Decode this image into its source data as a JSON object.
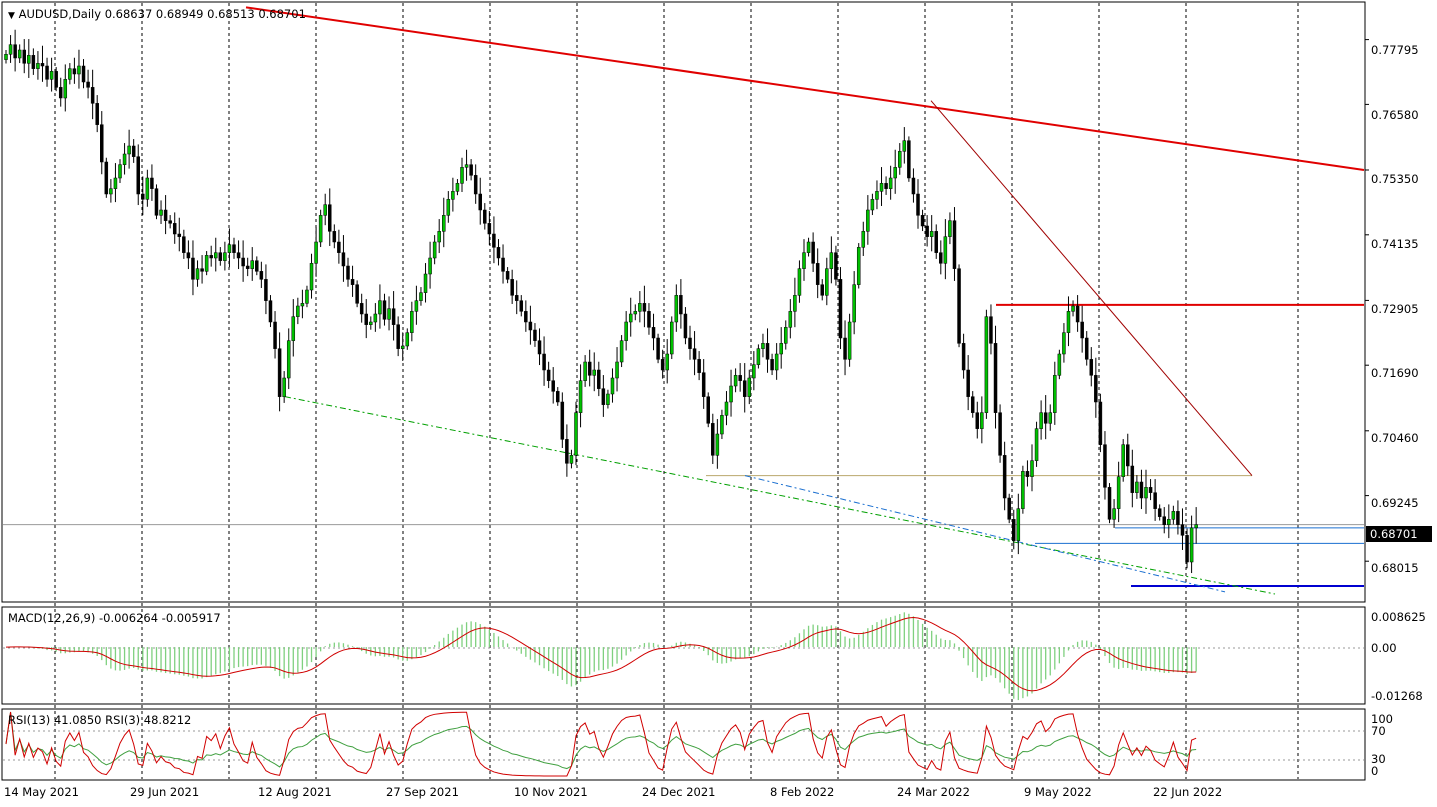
{
  "header": {
    "symbol_line": "AUDUSD,Daily  0.68637 0.68949 0.68513 0.68701",
    "macd_label": "MACD(12,26,9) -0.006264 -0.005917",
    "rsi_label": "RSI(13) 41.0850  RSI(3) 48.8212"
  },
  "current_price": "0.68701",
  "price_axis": [
    "0.77795",
    "0.76580",
    "0.75350",
    "0.74135",
    "0.72905",
    "0.71690",
    "0.70460",
    "0.69245",
    "0.68015"
  ],
  "macd_axis": [
    "0.008625",
    "0.00",
    "-0.01268"
  ],
  "rsi_axis": [
    "100",
    "70",
    "30",
    "0"
  ],
  "date_axis": [
    "14 May 2021",
    "29 Jun 2021",
    "12 Aug 2021",
    "27 Sep 2021",
    "10 Nov 2021",
    "24 Dec 2021",
    "8 Feb 2022",
    "24 Mar 2022",
    "9 May 2022",
    "22 Jun 2022"
  ],
  "colors": {
    "up": "#00c000",
    "down": "#000000",
    "trend_red": "#e00000",
    "support_green": "#00a000",
    "support_blue": "#1a6fd0",
    "fib": "#b9a76b",
    "macd_hist": "#7fd07f",
    "signal": "#d00000",
    "rsi13": "#40a040",
    "rsi3": "#d00000"
  },
  "chart_data": {
    "type": "candlestick",
    "symbol": "AUDUSD",
    "timeframe": "Daily",
    "last_bar": {
      "open": 0.68637,
      "high": 0.68949,
      "low": 0.68513,
      "close": 0.68701
    },
    "ylim": [
      0.6725,
      0.785
    ],
    "yticks": [
      0.77795,
      0.7658,
      0.7535,
      0.74135,
      0.72905,
      0.7169,
      0.7046,
      0.69245,
      0.68015
    ],
    "xticks": [
      "14 May 2021",
      "29 Jun 2021",
      "12 Aug 2021",
      "27 Sep 2021",
      "10 Nov 2021",
      "24 Dec 2021",
      "8 Feb 2022",
      "24 Mar 2022",
      "9 May 2022",
      "22 Jun 2022"
    ],
    "closes": [
      0.7752,
      0.777,
      0.7745,
      0.776,
      0.7735,
      0.775,
      0.7725,
      0.7735,
      0.773,
      0.7705,
      0.772,
      0.769,
      0.767,
      0.7705,
      0.7725,
      0.7715,
      0.773,
      0.77,
      0.769,
      0.766,
      0.762,
      0.755,
      0.749,
      0.75,
      0.752,
      0.7545,
      0.7565,
      0.758,
      0.756,
      0.749,
      0.748,
      0.752,
      0.75,
      0.745,
      0.746,
      0.744,
      0.7435,
      0.7415,
      0.741,
      0.738,
      0.737,
      0.733,
      0.735,
      0.7345,
      0.7375,
      0.737,
      0.738,
      0.7365,
      0.738,
      0.7395,
      0.738,
      0.737,
      0.7355,
      0.735,
      0.7365,
      0.7345,
      0.733,
      0.729,
      0.725,
      0.72,
      0.711,
      0.7145,
      0.7215,
      0.726,
      0.728,
      0.7285,
      0.731,
      0.736,
      0.74,
      0.745,
      0.747,
      0.742,
      0.74,
      0.738,
      0.7355,
      0.733,
      0.732,
      0.7285,
      0.7265,
      0.7245,
      0.725,
      0.7265,
      0.729,
      0.7255,
      0.7275,
      0.7245,
      0.72,
      0.7205,
      0.723,
      0.727,
      0.729,
      0.7305,
      0.734,
      0.737,
      0.74,
      0.742,
      0.745,
      0.748,
      0.7495,
      0.751,
      0.754,
      0.7545,
      0.7525,
      0.749,
      0.746,
      0.7435,
      0.7415,
      0.739,
      0.737,
      0.7345,
      0.733,
      0.73,
      0.729,
      0.727,
      0.725,
      0.7235,
      0.7215,
      0.719,
      0.716,
      0.714,
      0.712,
      0.71,
      0.703,
      0.6985,
      0.7,
      0.708,
      0.714,
      0.7175,
      0.715,
      0.716,
      0.7125,
      0.7095,
      0.7115,
      0.7145,
      0.7175,
      0.7215,
      0.725,
      0.7265,
      0.727,
      0.7285,
      0.727,
      0.724,
      0.722,
      0.718,
      0.716,
      0.719,
      0.725,
      0.73,
      0.7265,
      0.722,
      0.72,
      0.718,
      0.7155,
      0.711,
      0.706,
      0.7,
      0.704,
      0.7075,
      0.71,
      0.713,
      0.715,
      0.714,
      0.711,
      0.7145,
      0.717,
      0.72,
      0.721,
      0.718,
      0.716,
      0.719,
      0.721,
      0.724,
      0.727,
      0.73,
      0.735,
      0.738,
      0.74,
      0.736,
      0.732,
      0.73,
      0.735,
      0.738,
      0.733,
      0.722,
      0.718,
      0.725,
      0.732,
      0.739,
      0.742,
      0.746,
      0.748,
      0.7495,
      0.751,
      0.75,
      0.752,
      0.754,
      0.757,
      0.759,
      0.752,
      0.749,
      0.745,
      0.743,
      0.741,
      0.742,
      0.738,
      0.736,
      0.741,
      0.744,
      0.735,
      0.721,
      0.716,
      0.711,
      0.708,
      0.705,
      0.708,
      0.726,
      0.721,
      0.708,
      0.7,
      0.692,
      0.688,
      0.684,
      0.69,
      0.697,
      0.696,
      0.699,
      0.705,
      0.708,
      0.706,
      0.708,
      0.715,
      0.719,
      0.723,
      0.727,
      0.728,
      0.725,
      0.722,
      0.718,
      0.715,
      0.71,
      0.702,
      0.694,
      0.688,
      0.69,
      0.696,
      0.702,
      0.698,
      0.693,
      0.695,
      0.692,
      0.694,
      0.693,
      0.69,
      0.6885,
      0.687,
      0.688,
      0.6895,
      0.687,
      0.685,
      0.68,
      0.6864,
      0.687
    ],
    "macd": {
      "value": -0.006264,
      "signal": -0.005917,
      "ylim": [
        -0.0135,
        0.0095
      ]
    },
    "rsi": {
      "rsi13": 41.085,
      "rsi3": 48.8212,
      "levels": [
        30,
        70
      ],
      "ylim": [
        0,
        100
      ]
    }
  }
}
